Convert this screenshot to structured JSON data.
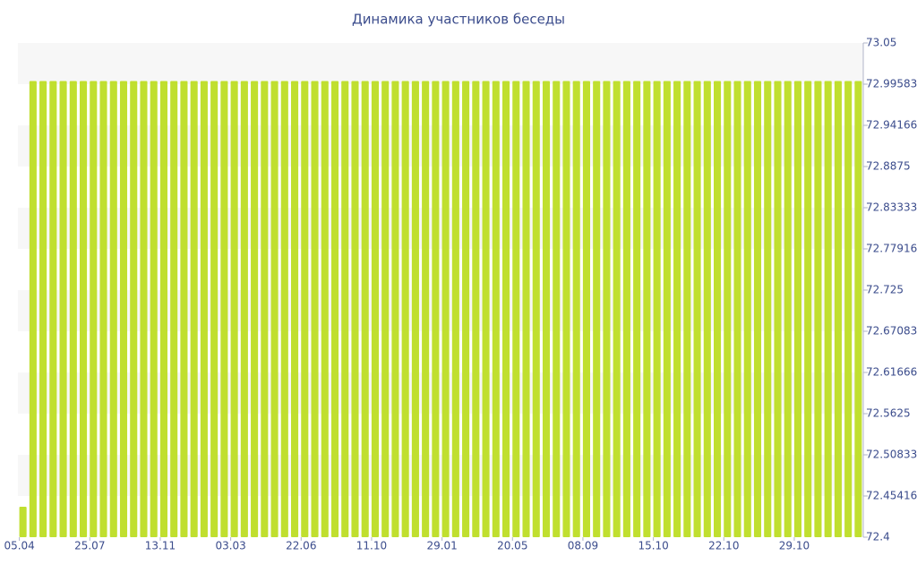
{
  "chart_data": {
    "type": "bar",
    "title": "Динамика участников беседы",
    "categories": [
      "05.04",
      null,
      null,
      null,
      null,
      null,
      null,
      "25.07",
      null,
      null,
      null,
      null,
      null,
      null,
      "13.11",
      null,
      null,
      null,
      null,
      null,
      null,
      "03.03",
      null,
      null,
      null,
      null,
      null,
      null,
      "22.06",
      null,
      null,
      null,
      null,
      null,
      null,
      "11.10",
      null,
      null,
      null,
      null,
      null,
      null,
      "29.01",
      null,
      null,
      null,
      null,
      null,
      null,
      "20.05",
      null,
      null,
      null,
      null,
      null,
      null,
      "08.09",
      null,
      null,
      null,
      null,
      null,
      null,
      "15.10",
      null,
      null,
      null,
      null,
      null,
      null,
      "22.10",
      null,
      null,
      null,
      null,
      null,
      null,
      "29.10",
      null,
      null,
      null,
      null,
      null,
      null
    ],
    "values": [
      72.44,
      73,
      73,
      73,
      73,
      73,
      73,
      73,
      73,
      73,
      73,
      73,
      73,
      73,
      73,
      73,
      73,
      73,
      73,
      73,
      73,
      73,
      73,
      73,
      73,
      73,
      73,
      73,
      73,
      73,
      73,
      73,
      73,
      73,
      73,
      73,
      73,
      73,
      73,
      73,
      73,
      73,
      73,
      73,
      73,
      73,
      73,
      73,
      73,
      73,
      73,
      73,
      73,
      73,
      73,
      73,
      73,
      73,
      73,
      73,
      73,
      73,
      73,
      73,
      73,
      73,
      73,
      73,
      73,
      73,
      73,
      73,
      73,
      73,
      73,
      73,
      73,
      73,
      73,
      73,
      73,
      73,
      73,
      73
    ],
    "color": "#c0df2f",
    "ylim": [
      72.4,
      73.05
    ],
    "yticks": [
      72.4,
      72.45416,
      72.50833,
      72.5625,
      72.61666,
      72.67083,
      72.725,
      72.77916,
      72.83333,
      72.8875,
      72.94166,
      72.99583,
      73.05
    ],
    "grid": true
  }
}
